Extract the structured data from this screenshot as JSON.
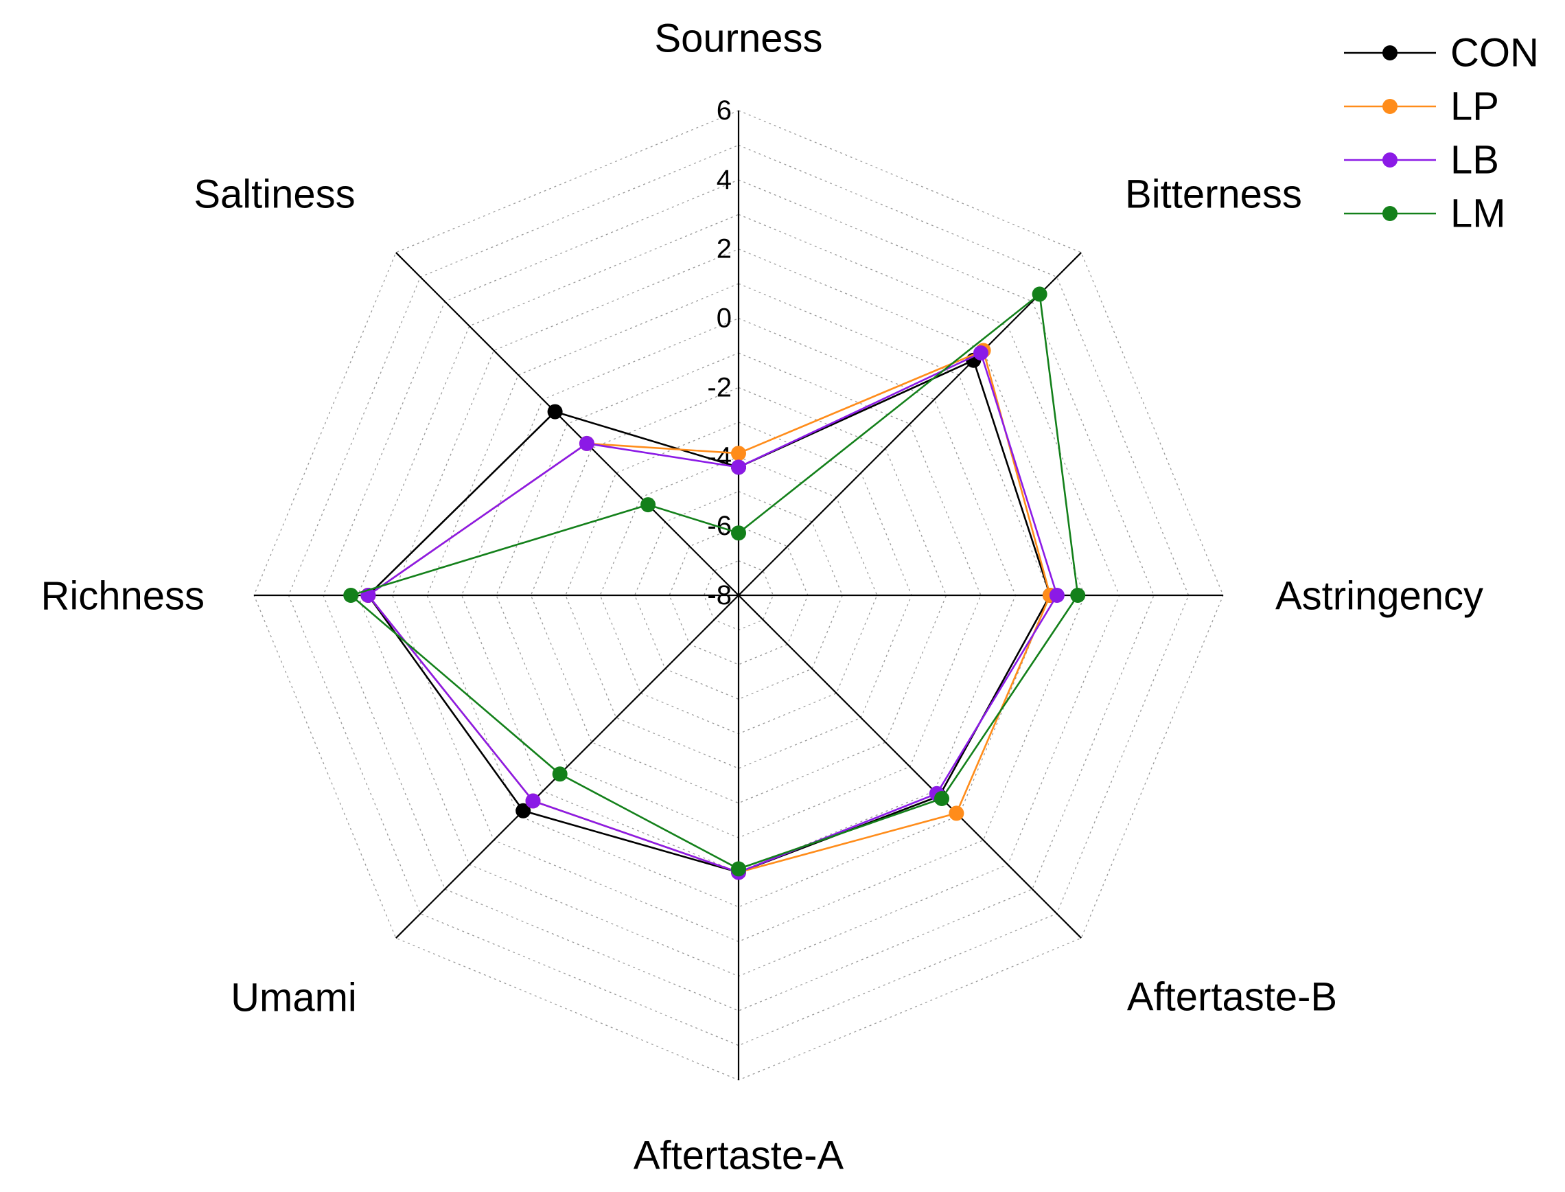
{
  "chart_data": {
    "type": "radar",
    "axes": [
      "Sourness",
      "Bitterness",
      "Astringency",
      "Aftertaste-B",
      "Aftertaste-A",
      "Umami",
      "Richness",
      "Saltiness"
    ],
    "r_range": [
      -8,
      6
    ],
    "ticks": [
      6,
      4,
      2,
      0,
      -2,
      -4,
      -6,
      -8
    ],
    "tick_labels": [
      "6",
      "4",
      "2",
      "0",
      "-2",
      "-4",
      "-6",
      "-8"
    ],
    "grid": true,
    "legend_position": "top-right",
    "series": [
      {
        "name": "CON",
        "color": "#000000",
        "values": [
          -4.3,
          1.6,
          1.0,
          0.2,
          0.0,
          0.8,
          2.7,
          -0.5
        ]
      },
      {
        "name": "LP",
        "color": "#ff8c1a",
        "values": [
          -3.9,
          2.0,
          1.0,
          0.9,
          0.0,
          0.4,
          2.7,
          -1.8
        ]
      },
      {
        "name": "LB",
        "color": "#8b1ae6",
        "values": [
          -4.3,
          1.9,
          1.2,
          0.1,
          0.0,
          0.4,
          2.7,
          -1.8
        ]
      },
      {
        "name": "LM",
        "color": "#13801a",
        "values": [
          -6.2,
          4.3,
          1.8,
          0.3,
          -0.1,
          -0.7,
          3.2,
          -4.3
        ]
      }
    ]
  }
}
